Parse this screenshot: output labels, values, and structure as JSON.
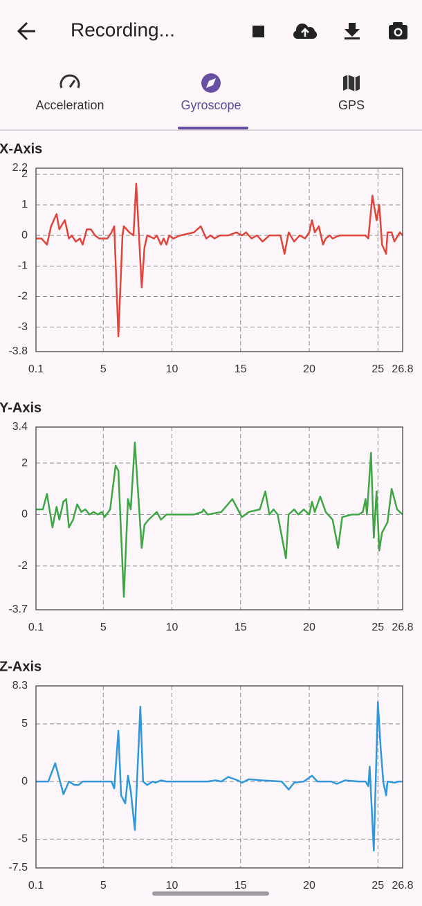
{
  "app_bar": {
    "title": "Recording..."
  },
  "tabs": [
    {
      "label": "Acceleration"
    },
    {
      "label": "Gyroscope",
      "selected": true
    },
    {
      "label": "GPS"
    }
  ],
  "chart_data": [
    {
      "type": "line",
      "title": "X-Axis",
      "x": [
        0.1,
        0.5,
        0.9,
        1.2,
        1.6,
        1.8,
        2.2,
        2.5,
        2.7,
        3.0,
        3.3,
        3.5,
        3.8,
        4.1,
        4.4,
        4.7,
        4.9,
        5.3,
        5.6,
        5.8,
        6.1,
        6.4,
        6.5,
        6.9,
        7.2,
        7.4,
        7.8,
        8.0,
        8.2,
        8.7,
        8.9,
        9.2,
        9.4,
        9.6,
        9.8,
        10.1,
        10.6,
        11.6,
        12.1,
        12.5,
        12.8,
        13.1,
        13.5,
        14.1,
        14.7,
        15.1,
        15.4,
        15.8,
        16.2,
        16.6,
        17.1,
        17.9,
        18.2,
        18.5,
        18.9,
        19.3,
        19.7,
        20.0,
        20.2,
        20.4,
        20.7,
        21.0,
        21.2,
        21.5,
        21.7,
        22.2,
        23.2,
        24.1,
        24.3,
        24.6,
        24.9,
        25.1,
        25.3,
        25.6,
        25.7,
        26.0,
        26.2,
        26.6,
        26.8
      ],
      "series": [
        {
          "color": "#e0443a",
          "values": [
            -0.1,
            -0.1,
            -0.3,
            0.3,
            0.7,
            0.2,
            0.5,
            -0.1,
            0,
            -0.2,
            -0.1,
            -0.3,
            0.2,
            0.2,
            0,
            -0.1,
            -0.1,
            -0.1,
            0.1,
            0.3,
            -3.3,
            0,
            0.3,
            0.1,
            0,
            1.7,
            -1.7,
            -0.4,
            0,
            -0.1,
            0,
            -0.3,
            -0.1,
            -0.3,
            0,
            -0.1,
            0,
            0.1,
            0.3,
            -0.1,
            0,
            -0.1,
            0,
            0,
            0.1,
            0,
            0.1,
            -0.1,
            0,
            -0.2,
            0,
            0,
            -0.6,
            0.1,
            -0.2,
            0,
            -0.1,
            0.1,
            0.5,
            0.1,
            0.3,
            -0.3,
            -0.1,
            0,
            -0.1,
            0,
            0,
            0,
            -0.1,
            1.3,
            0.5,
            1.0,
            -0.3,
            -0.6,
            0.1,
            0.1,
            -0.2,
            0.1,
            0
          ]
        }
      ],
      "xlim": [
        0.1,
        26.8
      ],
      "xticks": [
        0.1,
        5,
        10,
        15,
        20,
        25,
        26.8
      ],
      "ylim": [
        -3.8,
        2.2
      ],
      "yticks": [
        -3.8,
        -3,
        -2,
        -1,
        0,
        1,
        2,
        2.2
      ],
      "grid": true
    },
    {
      "type": "line",
      "title": "Y-Axis",
      "x": [
        0.1,
        0.6,
        0.9,
        1.3,
        1.6,
        1.8,
        2.1,
        2.3,
        2.5,
        2.8,
        3.1,
        3.4,
        3.7,
        4.0,
        4.3,
        4.6,
        4.9,
        5.1,
        5.5,
        5.9,
        6.1,
        6.5,
        6.8,
        7.0,
        7.3,
        7.8,
        8.0,
        8.3,
        8.9,
        9.2,
        9.6,
        10.6,
        11.6,
        12.2,
        12.3,
        12.6,
        13.6,
        14.4,
        15.1,
        15.6,
        16.4,
        16.8,
        17.1,
        17.4,
        17.7,
        18.3,
        18.5,
        18.9,
        19.2,
        19.6,
        20.0,
        20.2,
        20.4,
        20.8,
        21.2,
        21.7,
        22.1,
        22.4,
        23.1,
        23.6,
        23.9,
        24.1,
        24.2,
        24.5,
        24.7,
        24.9,
        25.1,
        25.3,
        25.7,
        26.0,
        26.4,
        26.8
      ],
      "series": [
        {
          "color": "#3fa645",
          "values": [
            0.2,
            0.2,
            0.8,
            -0.5,
            0.3,
            -0.2,
            0.5,
            0.6,
            -0.5,
            -0.2,
            0.4,
            0.1,
            0.2,
            0,
            0.1,
            0,
            0.1,
            -0.1,
            0.2,
            1.9,
            1.7,
            -3.2,
            0.6,
            0.2,
            2.8,
            -1.3,
            -0.4,
            -0.2,
            0.1,
            -0.2,
            0,
            0,
            0,
            0.1,
            0.2,
            0,
            0.1,
            0.6,
            -0.1,
            0.1,
            0.2,
            0.9,
            0,
            0.2,
            0,
            -1.7,
            0,
            0.2,
            0,
            0.2,
            0,
            0.5,
            0.1,
            0.7,
            0.1,
            -0.2,
            -1.3,
            -0.1,
            0,
            0,
            0.1,
            0.6,
            0,
            2.4,
            -0.9,
            0.9,
            -1.4,
            -0.7,
            -0.3,
            1.0,
            0.2,
            0
          ]
        }
      ],
      "xlim": [
        0.1,
        26.8
      ],
      "xticks": [
        0.1,
        5,
        10,
        15,
        20,
        25,
        26.8
      ],
      "ylim": [
        -3.7,
        3.4
      ],
      "yticks": [
        -3.7,
        -2,
        0,
        2,
        3.4
      ],
      "grid": true
    },
    {
      "type": "line",
      "title": "Z-Axis",
      "x": [
        0.1,
        0.6,
        1.0,
        1.5,
        2.1,
        2.5,
        2.9,
        3.2,
        3.5,
        4.5,
        5.3,
        5.6,
        5.8,
        6.1,
        6.3,
        6.6,
        6.8,
        7.0,
        7.3,
        7.7,
        7.9,
        8.2,
        8.6,
        8.8,
        9.2,
        9.6,
        10.6,
        11.6,
        12.6,
        13.2,
        13.6,
        14.1,
        14.8,
        15.1,
        15.6,
        16.6,
        18.0,
        18.5,
        18.9,
        19.6,
        20.2,
        20.6,
        21.6,
        22.0,
        22.6,
        23.6,
        24.1,
        24.3,
        24.4,
        24.7,
        25.0,
        25.2,
        25.4,
        25.6,
        25.7,
        26.2,
        26.5,
        26.8
      ],
      "series": [
        {
          "color": "#2f97dc",
          "values": [
            0,
            0,
            0,
            1.6,
            -1.1,
            0,
            -0.3,
            -0.3,
            0,
            0,
            0,
            0,
            -0.6,
            4.4,
            -1.2,
            -1.9,
            0.5,
            -0.8,
            -4.2,
            6.5,
            0,
            -0.3,
            0,
            -0.1,
            0.1,
            0,
            0,
            0,
            0,
            0.1,
            0,
            0.4,
            0.1,
            -0.1,
            0.2,
            0.1,
            0,
            -0.7,
            -0.1,
            0,
            0.5,
            0,
            0,
            -0.2,
            0.1,
            0,
            0,
            -0.4,
            1.3,
            -6.0,
            6.9,
            2.9,
            -0.1,
            -1.2,
            0,
            -0.1,
            0,
            0
          ]
        }
      ],
      "xlim": [
        0.1,
        26.8
      ],
      "xticks": [
        0.1,
        5,
        10,
        15,
        20,
        25,
        26.8
      ],
      "ylim": [
        -7.5,
        8.3
      ],
      "yticks": [
        -7.5,
        -5,
        0,
        5,
        8.3
      ],
      "grid": true
    }
  ]
}
